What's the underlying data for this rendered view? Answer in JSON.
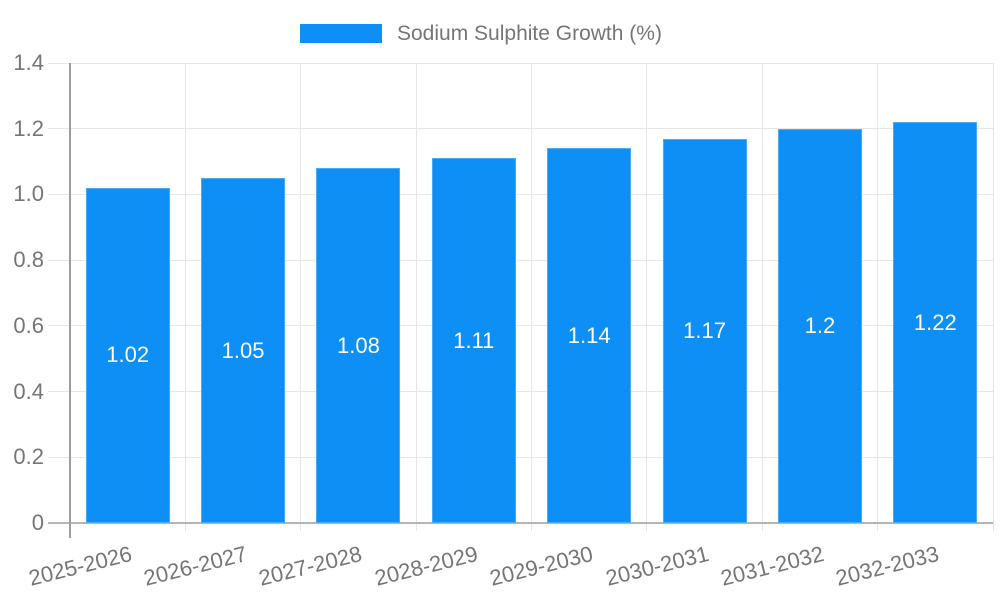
{
  "chart_data": {
    "type": "bar",
    "title": "Sodium Sulphite Growth (%)",
    "legend_position": "top",
    "grid": true,
    "xlabel": "",
    "ylabel": "",
    "ylim": [
      0,
      1.4
    ],
    "ytick_step": 0.2,
    "ytick_labels": [
      "0",
      "0.2",
      "0.4",
      "0.6",
      "0.8",
      "1.0",
      "1.2",
      "1.4"
    ],
    "categories": [
      "2025-2026",
      "2026-2027",
      "2027-2028",
      "2028-2029",
      "2029-2030",
      "2030-2031",
      "2031-2032",
      "2032-2033"
    ],
    "series": [
      {
        "name": "Sodium Sulphite Growth (%)",
        "values": [
          1.02,
          1.05,
          1.08,
          1.11,
          1.14,
          1.17,
          1.2,
          1.22
        ],
        "value_labels": [
          "1.02",
          "1.05",
          "1.08",
          "1.11",
          "1.14",
          "1.17",
          "1.2",
          "1.22"
        ]
      }
    ],
    "colors": {
      "bar": "#0d8ff5",
      "grid": "#e6e6e6",
      "axis_x": "#b5b5b5",
      "axis_y": "#9e9e9e",
      "text": "#757575",
      "value_label": "#ffffff"
    }
  }
}
